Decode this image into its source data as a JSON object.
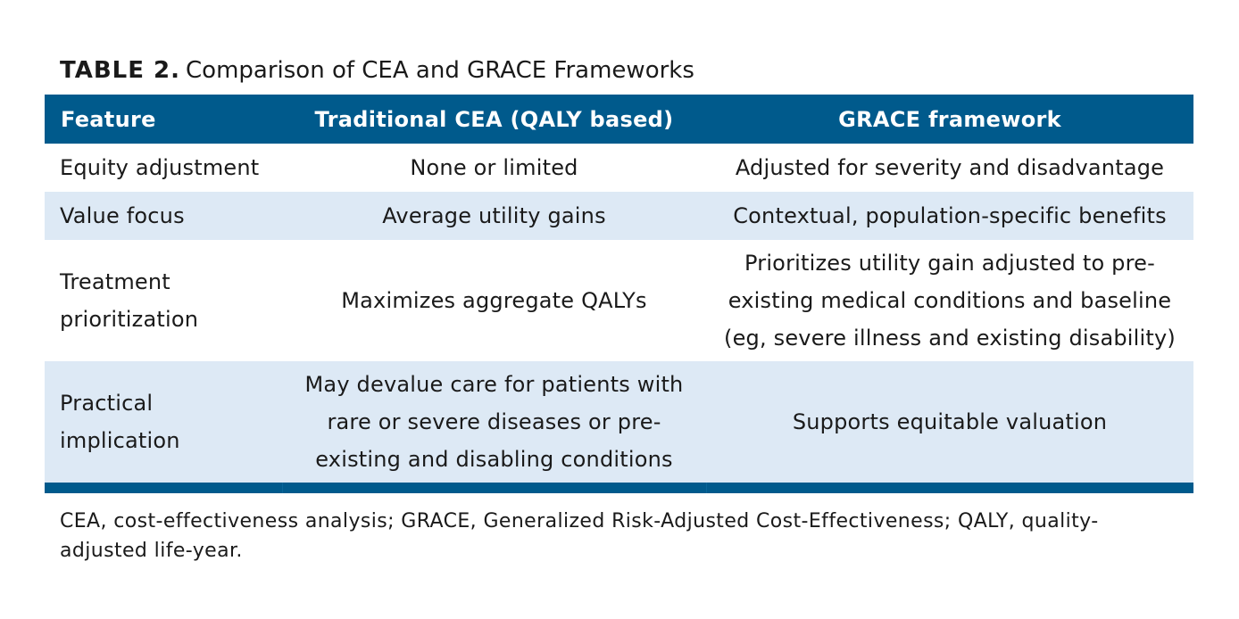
{
  "caption": {
    "label": "TABLE 2.",
    "title": "Comparison of CEA and GRACE Frameworks"
  },
  "table": {
    "headers": [
      "Feature",
      "Traditional CEA (QALY based)",
      "GRACE framework"
    ],
    "rows": [
      {
        "feature": "Equity adjustment",
        "cea": "None or limited",
        "grace": "Adjusted for severity and disadvantage"
      },
      {
        "feature": "Value focus",
        "cea": "Average utility gains",
        "grace": "Contextual, population-specific benefits"
      },
      {
        "feature": "Treatment prioritization",
        "cea": "Maximizes aggregate QALYs",
        "grace": "Prioritizes utility gain adjusted to pre-existing medical conditions and baseline (eg, severe illness and existing disability)"
      },
      {
        "feature": "Practical implication",
        "cea": "May devalue care for patients with rare or severe diseases or pre-existing and disabling conditions",
        "grace": "Supports equitable valuation"
      }
    ]
  },
  "footnote": "CEA, cost-effectiveness analysis; GRACE, Generalized Risk-Adjusted Cost-Effectiveness; QALY, quality-adjusted life-year.",
  "colors": {
    "header_bg": "#005a8c",
    "stripe_bg": "#dde9f5",
    "text": "#1a1a1a"
  }
}
